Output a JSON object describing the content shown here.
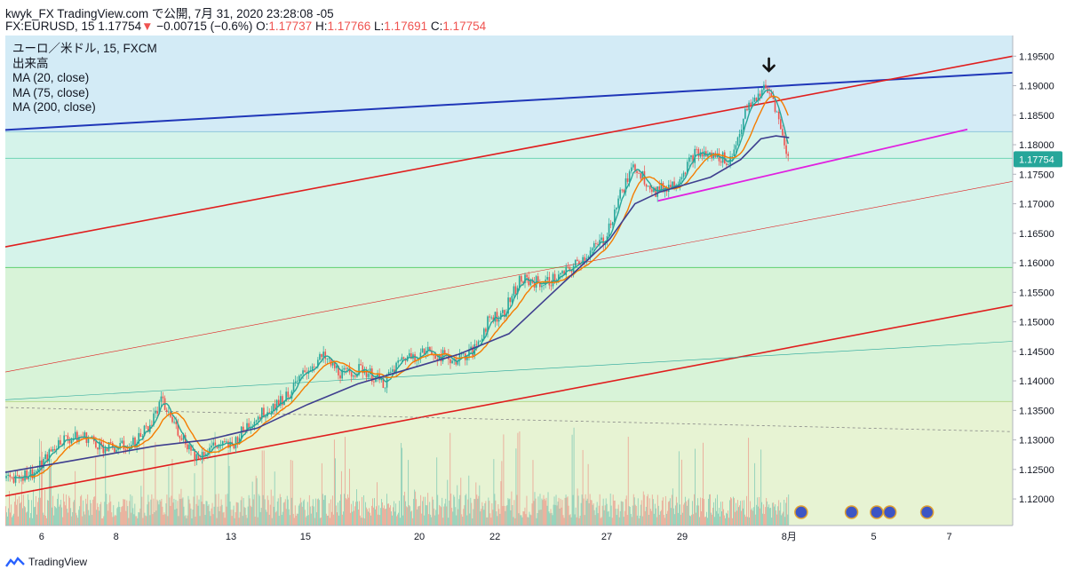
{
  "header": {
    "line1": "kwyk_FX TradingView.com で公開, 7月 31, 2020 23:28:08 -05",
    "symbol": "FX:EURUSD, 15",
    "last_price": "1.17754",
    "change_arrow": "▼",
    "change": "−0.00715 (−0.6%)",
    "o_label": "O:",
    "o_value": "1.17737",
    "h_label": "H:",
    "h_value": "1.17766",
    "l_label": "L:",
    "l_value": "1.17691",
    "c_label": "C:",
    "c_value": "1.17754"
  },
  "legend": {
    "title": "ユーロ／米ドル, 15, FXCM",
    "volume": "出来高",
    "ma20": "MA (20, close)",
    "ma75": "MA (75, close)",
    "ma200": "MA (200, close)"
  },
  "footer": {
    "brand": "TradingView"
  },
  "colors": {
    "zone_blue": "#d3ebf6",
    "zone_teal": "#d5f3ea",
    "zone_green": "#d8f3d8",
    "zone_yellow": "#e7f3d3",
    "candle_up": "#26a69a",
    "candle_down": "#ef5350",
    "ma20": "#26a69a",
    "ma75": "#f57c00",
    "ma200": "#3f3f8f",
    "trend_red": "#e01e1e",
    "trend_blue": "#1f36b8",
    "trend_magenta": "#e020e0",
    "price_tag": "#26a69a"
  },
  "chart_data": {
    "type": "candlestick",
    "symbol": "FX:EURUSD",
    "timeframe": "15",
    "last_price": 1.17754,
    "ylim": [
      1.1155,
      1.1985
    ],
    "y_ticks": [
      "1.19500",
      "1.19000",
      "1.18500",
      "1.18000",
      "1.17500",
      "1.17000",
      "1.16500",
      "1.16000",
      "1.15500",
      "1.15000",
      "1.14500",
      "1.14000",
      "1.13500",
      "1.13000",
      "1.12500",
      "1.12000"
    ],
    "y_tick_values": [
      1.195,
      1.19,
      1.185,
      1.18,
      1.175,
      1.17,
      1.165,
      1.16,
      1.155,
      1.15,
      1.145,
      1.14,
      1.135,
      1.13,
      1.125,
      1.12
    ],
    "x_tick_labels": [
      "6",
      "8",
      "13",
      "15",
      "20",
      "22",
      "27",
      "29",
      "8月",
      "5",
      "7"
    ],
    "x_tick_index": [
      0.036,
      0.11,
      0.224,
      0.298,
      0.411,
      0.486,
      0.597,
      0.672,
      0.778,
      0.862,
      0.937
    ],
    "x_axis_end_index": 1.0,
    "data_end_index": 0.778,
    "price_path": [
      [
        0.0,
        1.1235
      ],
      [
        0.03,
        1.1245
      ],
      [
        0.055,
        1.13
      ],
      [
        0.08,
        1.1305
      ],
      [
        0.1,
        1.1285
      ],
      [
        0.125,
        1.129
      ],
      [
        0.145,
        1.133
      ],
      [
        0.155,
        1.1365
      ],
      [
        0.17,
        1.132
      ],
      [
        0.19,
        1.127
      ],
      [
        0.205,
        1.129
      ],
      [
        0.225,
        1.129
      ],
      [
        0.24,
        1.1325
      ],
      [
        0.255,
        1.1345
      ],
      [
        0.28,
        1.1375
      ],
      [
        0.3,
        1.142
      ],
      [
        0.315,
        1.144
      ],
      [
        0.335,
        1.141
      ],
      [
        0.355,
        1.142
      ],
      [
        0.375,
        1.1395
      ],
      [
        0.395,
        1.144
      ],
      [
        0.42,
        1.145
      ],
      [
        0.445,
        1.1435
      ],
      [
        0.465,
        1.145
      ],
      [
        0.48,
        1.1505
      ],
      [
        0.495,
        1.1515
      ],
      [
        0.51,
        1.157
      ],
      [
        0.535,
        1.1565
      ],
      [
        0.555,
        1.158
      ],
      [
        0.575,
        1.161
      ],
      [
        0.595,
        1.164
      ],
      [
        0.61,
        1.1715
      ],
      [
        0.625,
        1.1765
      ],
      [
        0.645,
        1.172
      ],
      [
        0.665,
        1.1735
      ],
      [
        0.685,
        1.1785
      ],
      [
        0.705,
        1.178
      ],
      [
        0.72,
        1.1775
      ],
      [
        0.735,
        1.1855
      ],
      [
        0.752,
        1.1895
      ],
      [
        0.762,
        1.188
      ],
      [
        0.772,
        1.181
      ],
      [
        0.778,
        1.1775
      ]
    ],
    "ma200_path": [
      [
        0.0,
        1.1245
      ],
      [
        0.05,
        1.126
      ],
      [
        0.1,
        1.1275
      ],
      [
        0.15,
        1.129
      ],
      [
        0.2,
        1.13
      ],
      [
        0.25,
        1.132
      ],
      [
        0.3,
        1.136
      ],
      [
        0.35,
        1.1395
      ],
      [
        0.4,
        1.142
      ],
      [
        0.45,
        1.1445
      ],
      [
        0.5,
        1.148
      ],
      [
        0.55,
        1.156
      ],
      [
        0.6,
        1.164
      ],
      [
        0.625,
        1.17
      ],
      [
        0.65,
        1.172
      ],
      [
        0.7,
        1.1745
      ],
      [
        0.73,
        1.1775
      ],
      [
        0.75,
        1.181
      ],
      [
        0.765,
        1.1815
      ],
      [
        0.778,
        1.1812
      ]
    ],
    "trendlines": [
      {
        "points": [
          [
            0.0,
            1.1825
          ],
          [
            1.0,
            1.1922
          ]
        ],
        "color_key": "trend_blue",
        "width": 2
      },
      {
        "points": [
          [
            0.0,
            1.1627
          ],
          [
            1.0,
            1.195
          ]
        ],
        "color_key": "trend_red",
        "width": 1.6
      },
      {
        "points": [
          [
            0.0,
            1.1205
          ],
          [
            1.0,
            1.1528
          ]
        ],
        "color_key": "trend_red",
        "width": 1.6
      },
      {
        "points": [
          [
            0.0,
            1.1415
          ],
          [
            1.0,
            1.1738
          ]
        ],
        "color_key": "trend_red",
        "width": 0.6
      },
      {
        "points": [
          [
            0.0,
            1.1368
          ],
          [
            1.0,
            1.1467
          ]
        ],
        "color_key": "ma20",
        "width": 0.6
      },
      {
        "points": [
          [
            0.648,
            1.1705
          ],
          [
            0.955,
            1.1826
          ]
        ],
        "color_key": "trend_magenta",
        "width": 1.8
      }
    ],
    "dashed_line": {
      "points": [
        [
          0.0,
          1.1355
        ],
        [
          1.0,
          1.1314
        ]
      ]
    },
    "zones": [
      {
        "from": 1.1985,
        "to": 1.1822,
        "color_key": "zone_blue"
      },
      {
        "from": 1.1822,
        "to": 1.1592,
        "color_key": "zone_teal"
      },
      {
        "from": 1.1592,
        "to": 1.1365,
        "color_key": "zone_green"
      },
      {
        "from": 1.1365,
        "to": 1.1155,
        "color_key": "zone_yellow"
      }
    ],
    "zone_lines": [
      1.1822,
      1.1777,
      1.1592,
      1.1365
    ],
    "annotation_arrow": {
      "x": 0.758,
      "y": 1.1925
    }
  }
}
